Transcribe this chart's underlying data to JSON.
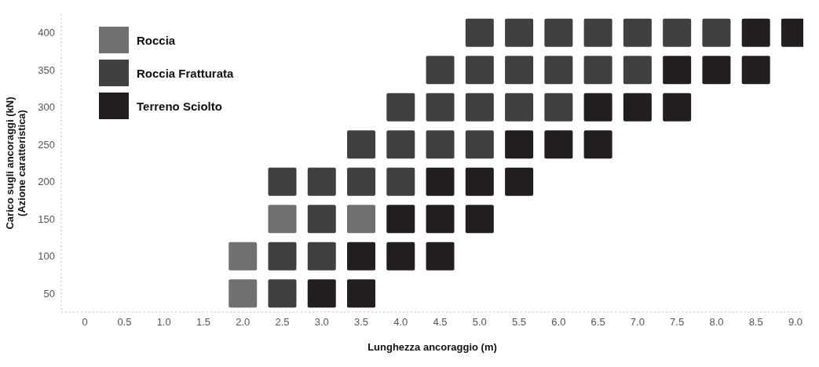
{
  "chart_data": {
    "type": "scatter",
    "xlabel": "Lunghezza ancoraggio (m)",
    "ylabel": "Carico sugli ancoraggi (kN)\n(Azione caratteristica)",
    "marker": "square",
    "legend": "top left",
    "grid": false,
    "xlim": [
      -0.3,
      9.1
    ],
    "xticks": [
      0,
      {
        "value": 0.5,
        "label": "0.5"
      },
      {
        "value": 1,
        "label": "1.0"
      },
      {
        "value": 1.5,
        "label": "1.5"
      },
      {
        "value": 2,
        "label": "2.0"
      },
      {
        "value": 2.5,
        "label": "2.5"
      },
      {
        "value": 3,
        "label": "3.0"
      },
      {
        "value": 3.5,
        "label": "3.5"
      },
      {
        "value": 4,
        "label": "4.0"
      },
      {
        "value": 4.5,
        "label": "4.5"
      },
      {
        "value": 5,
        "label": "5.0"
      },
      {
        "value": 5.5,
        "label": "5.5"
      },
      {
        "value": 6,
        "label": "6.0"
      },
      {
        "value": 6.5,
        "label": "6.5"
      },
      {
        "value": 7,
        "label": "7.0"
      },
      {
        "value": 7.5,
        "label": "7.5"
      },
      {
        "value": 8,
        "label": "8.0"
      },
      {
        "value": 8.5,
        "label": "8.5"
      },
      {
        "value": 9,
        "label": "9.0"
      }
    ],
    "ylim": [
      25,
      425
    ],
    "yticks": [
      50,
      100,
      150,
      200,
      250,
      300,
      350,
      400
    ],
    "series": [
      {
        "name": "Roccia",
        "color": "#707070",
        "x": [
          2,
          2,
          2.5,
          3.5
        ],
        "values": [
          50,
          100,
          150,
          150
        ]
      },
      {
        "name": "Roccia Fratturata",
        "color": "#404040",
        "x": [
          2.5,
          2.5,
          3,
          3,
          2.5,
          3,
          3.5,
          4,
          3.5,
          4,
          4.5,
          5,
          4,
          4.5,
          5,
          5.5,
          6,
          4.5,
          5,
          5.5,
          6,
          6.5,
          7,
          5,
          5.5,
          6,
          6.5,
          7,
          7.5,
          8
        ],
        "values": [
          50,
          100,
          100,
          150,
          200,
          200,
          200,
          200,
          250,
          250,
          250,
          250,
          300,
          300,
          300,
          300,
          300,
          350,
          350,
          350,
          350,
          350,
          350,
          400,
          400,
          400,
          400,
          400,
          400,
          400
        ]
      },
      {
        "name": "Terreno Sciolto",
        "color": "#231f20",
        "x": [
          3,
          3.5,
          3.5,
          4,
          4.5,
          4,
          4.5,
          5,
          4.5,
          5,
          5.5,
          5.5,
          6,
          6.5,
          6.5,
          7,
          7.5,
          7.5,
          8,
          8.5,
          8.5,
          9
        ],
        "values": [
          50,
          50,
          100,
          100,
          100,
          150,
          150,
          150,
          200,
          200,
          200,
          250,
          250,
          250,
          300,
          300,
          300,
          350,
          350,
          350,
          400,
          400
        ]
      }
    ]
  }
}
